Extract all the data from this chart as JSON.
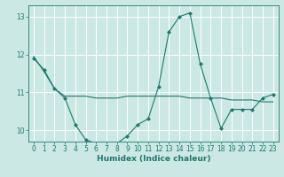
{
  "xlabel": "Humidex (Indice chaleur)",
  "bg_color": "#cce8e4",
  "line_color": "#1a7a6e",
  "grid_color": "#ffffff",
  "xlim": [
    -0.5,
    23.5
  ],
  "ylim": [
    9.7,
    13.3
  ],
  "yticks": [
    10,
    11,
    12,
    13
  ],
  "xticks": [
    0,
    1,
    2,
    3,
    4,
    5,
    6,
    7,
    8,
    9,
    10,
    11,
    12,
    13,
    14,
    15,
    16,
    17,
    18,
    19,
    20,
    21,
    22,
    23
  ],
  "line1_x": [
    0,
    1,
    2,
    3,
    4,
    5,
    6,
    7,
    8,
    9,
    10,
    11,
    12,
    13,
    14,
    15,
    16,
    17,
    18,
    19,
    20,
    21,
    22,
    23
  ],
  "line1_y": [
    11.9,
    11.6,
    11.1,
    10.85,
    10.15,
    9.75,
    9.65,
    9.65,
    9.65,
    9.85,
    10.15,
    10.3,
    11.15,
    12.6,
    13.0,
    13.1,
    11.75,
    10.85,
    10.05,
    10.55,
    10.55,
    10.55,
    10.85,
    10.95
  ],
  "line2_x": [
    0,
    1,
    2,
    3,
    4,
    5,
    6,
    7,
    8,
    9,
    10,
    11,
    12,
    13,
    14,
    15,
    16,
    17,
    18,
    19,
    20,
    21,
    22,
    23
  ],
  "line2_y": [
    11.95,
    11.55,
    11.1,
    10.9,
    10.9,
    10.9,
    10.85,
    10.85,
    10.85,
    10.9,
    10.9,
    10.9,
    10.9,
    10.9,
    10.9,
    10.85,
    10.85,
    10.85,
    10.85,
    10.8,
    10.8,
    10.8,
    10.75,
    10.75
  ]
}
